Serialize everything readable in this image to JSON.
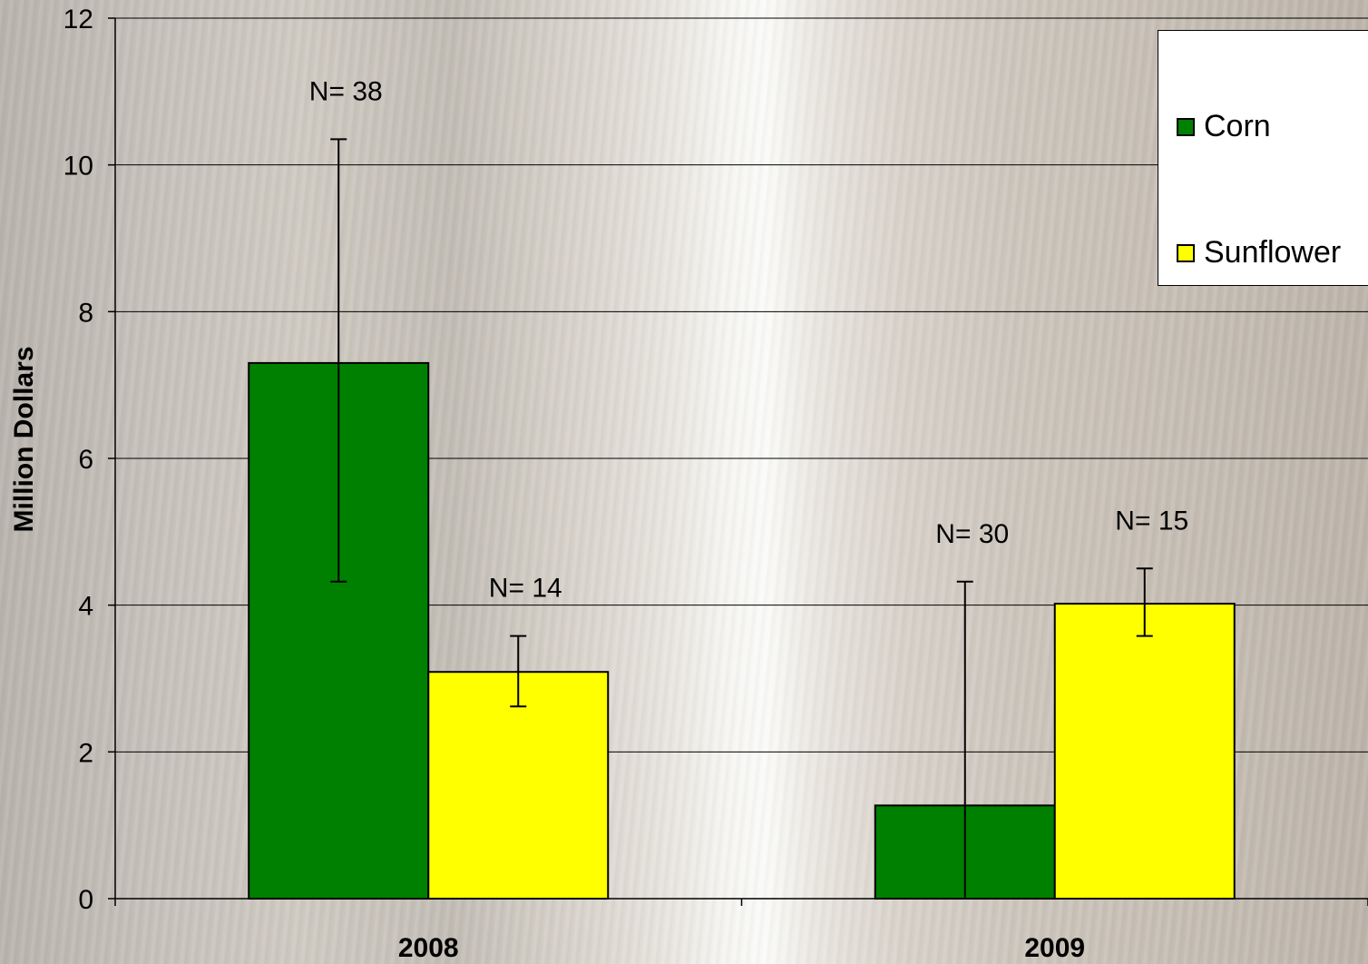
{
  "chart_data": {
    "type": "bar",
    "categories": [
      "2008",
      "2009"
    ],
    "series": [
      {
        "name": "Corn",
        "color": "#008000",
        "values": [
          7.3,
          1.27
        ],
        "err_low": [
          4.32,
          0
        ],
        "err_high": [
          10.35,
          4.32
        ],
        "n_labels": [
          "N= 38",
          "N= 30"
        ]
      },
      {
        "name": "Sunflower",
        "color": "#ffff00",
        "values": [
          3.09,
          4.02
        ],
        "err_low": [
          2.62,
          3.58
        ],
        "err_high": [
          3.58,
          4.5
        ],
        "n_labels": [
          "N= 14",
          "N= 15"
        ]
      }
    ],
    "ylabel": "Million Dollars",
    "ylim": [
      0,
      12
    ],
    "yticks": [
      "0",
      "2",
      "4",
      "6",
      "8",
      "10",
      "12"
    ],
    "grid": true,
    "legend_position": "top-right"
  }
}
